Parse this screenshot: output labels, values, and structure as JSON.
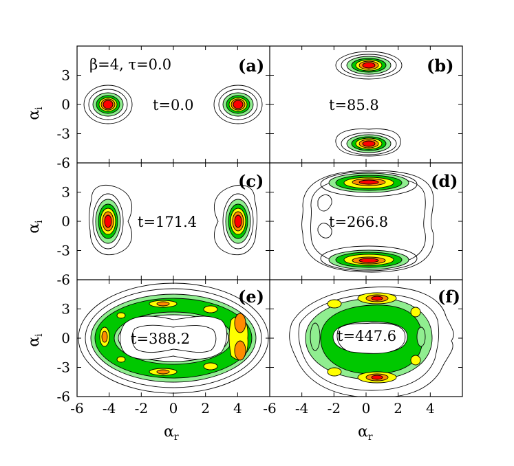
{
  "parameters_label": "β=4, τ=0.0",
  "axes": {
    "xlabel": "α_r",
    "ylabel": "α_i"
  },
  "colors": {
    "level1": "#90ee90",
    "level2": "#00c800",
    "level3": "#ffff00",
    "level4": "#ff8c00",
    "level5": "#ff0000",
    "line": "#000000"
  },
  "chart_data": [
    {
      "type": "heatmap",
      "panel": "(a)",
      "time_label": "t=0.0",
      "xlim": [
        -6,
        6
      ],
      "ylim": [
        -6,
        6
      ],
      "xticks": [
        -6,
        -4,
        -2,
        0,
        2,
        4
      ],
      "yticks": [
        -6,
        -3,
        0,
        3
      ],
      "features": [
        {
          "kind": "peak",
          "x": -4,
          "y": 0
        },
        {
          "kind": "peak",
          "x": 4,
          "y": 0
        }
      ]
    },
    {
      "type": "heatmap",
      "panel": "(b)",
      "time_label": "t=85.8",
      "xlim": [
        -6,
        6
      ],
      "ylim": [
        -6,
        6
      ],
      "xticks": [
        -6,
        -4,
        -2,
        0,
        2,
        4
      ],
      "yticks": [
        -6,
        -3,
        0,
        3
      ],
      "features": [
        {
          "kind": "peak",
          "x": 0,
          "y": 4
        },
        {
          "kind": "peak",
          "x": 0,
          "y": -4
        }
      ]
    },
    {
      "type": "heatmap",
      "panel": "(c)",
      "time_label": "t=171.4",
      "xlim": [
        -6,
        6
      ],
      "ylim": [
        -6,
        6
      ],
      "xticks": [
        -6,
        -4,
        -2,
        0,
        2,
        4
      ],
      "yticks": [
        -6,
        -3,
        0,
        3
      ],
      "features": [
        {
          "kind": "peak",
          "x": -4,
          "y": 0
        },
        {
          "kind": "peak",
          "x": 4,
          "y": 0
        }
      ]
    },
    {
      "type": "heatmap",
      "panel": "(d)",
      "time_label": "t=266.8",
      "xlim": [
        -6,
        6
      ],
      "ylim": [
        -6,
        6
      ],
      "xticks": [
        -6,
        -4,
        -2,
        0,
        2,
        4
      ],
      "yticks": [
        -6,
        -3,
        0,
        3
      ],
      "features": [
        {
          "kind": "peak",
          "x": 0,
          "y": 4
        },
        {
          "kind": "peak",
          "x": 0,
          "y": -4
        },
        {
          "kind": "ring",
          "r": 4.5
        }
      ]
    },
    {
      "type": "heatmap",
      "panel": "(e)",
      "time_label": "t=388.2",
      "xlim": [
        -6,
        6
      ],
      "ylim": [
        -6,
        6
      ],
      "xticks": [
        -6,
        -4,
        -2,
        0,
        2,
        4
      ],
      "yticks": [
        -6,
        -3,
        0,
        3
      ],
      "features": [
        {
          "kind": "ring",
          "r": 4.5
        }
      ]
    },
    {
      "type": "heatmap",
      "panel": "(f)",
      "time_label": "t=447.6",
      "xlim": [
        -6,
        6
      ],
      "ylim": [
        -6,
        6
      ],
      "xticks": [
        -6,
        -4,
        -2,
        0,
        2,
        4
      ],
      "yticks": [
        -6,
        -3,
        0,
        3
      ],
      "features": [
        {
          "kind": "ring",
          "r": 4.3
        }
      ]
    }
  ]
}
